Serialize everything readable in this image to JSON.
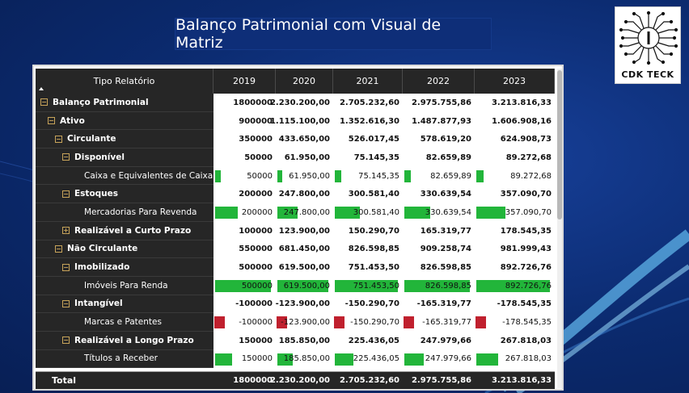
{
  "title": "Balanço Patrimonial com Visual de Matriz",
  "logo": {
    "text": "CDK TECK"
  },
  "matrix": {
    "header_label": "Tipo Relatório",
    "years": [
      "2019",
      "2020",
      "2021",
      "2022",
      "2023"
    ],
    "rows": [
      {
        "label": "Balanço Patrimonial",
        "level": 0,
        "expander": "minus",
        "bold": true,
        "bar": false,
        "values": [
          "1800000",
          "2.230.200,00",
          "2.705.232,60",
          "2.975.755,86",
          "3.213.816,33"
        ],
        "nums": [
          1800000,
          2230200,
          2705232.6,
          2975755.86,
          3213816.33
        ]
      },
      {
        "label": "Ativo",
        "level": 1,
        "expander": "minus",
        "bold": true,
        "bar": false,
        "values": [
          "900000",
          "1.115.100,00",
          "1.352.616,30",
          "1.487.877,93",
          "1.606.908,16"
        ],
        "nums": [
          900000,
          1115100,
          1352616.3,
          1487877.93,
          1606908.16
        ]
      },
      {
        "label": "Circulante",
        "level": 2,
        "expander": "minus",
        "bold": true,
        "bar": false,
        "values": [
          "350000",
          "433.650,00",
          "526.017,45",
          "578.619,20",
          "624.908,73"
        ],
        "nums": [
          350000,
          433650,
          526017.45,
          578619.2,
          624908.73
        ]
      },
      {
        "label": "Disponível",
        "level": 3,
        "expander": "minus",
        "bold": true,
        "bar": false,
        "values": [
          "50000",
          "61.950,00",
          "75.145,35",
          "82.659,89",
          "89.272,68"
        ],
        "nums": [
          50000,
          61950,
          75145.35,
          82659.89,
          89272.68
        ]
      },
      {
        "label": "Caixa e Equivalentes de Caixa",
        "level": 4,
        "expander": "none",
        "bold": false,
        "bar": true,
        "values": [
          "50000",
          "61.950,00",
          "75.145,35",
          "82.659,89",
          "89.272,68"
        ],
        "nums": [
          50000,
          61950,
          75145.35,
          82659.89,
          89272.68
        ]
      },
      {
        "label": "Estoques",
        "level": 3,
        "expander": "minus",
        "bold": true,
        "bar": false,
        "values": [
          "200000",
          "247.800,00",
          "300.581,40",
          "330.639,54",
          "357.090,70"
        ],
        "nums": [
          200000,
          247800,
          300581.4,
          330639.54,
          357090.7
        ]
      },
      {
        "label": "Mercadorias Para Revenda",
        "level": 4,
        "expander": "none",
        "bold": false,
        "bar": true,
        "values": [
          "200000",
          "247.800,00",
          "300.581,40",
          "330.639,54",
          "357.090,70"
        ],
        "nums": [
          200000,
          247800,
          300581.4,
          330639.54,
          357090.7
        ]
      },
      {
        "label": "Realizável a Curto Prazo",
        "level": 3,
        "expander": "plus",
        "bold": true,
        "bar": false,
        "values": [
          "100000",
          "123.900,00",
          "150.290,70",
          "165.319,77",
          "178.545,35"
        ],
        "nums": [
          100000,
          123900,
          150290.7,
          165319.77,
          178545.35
        ]
      },
      {
        "label": "Não Circulante",
        "level": 2,
        "expander": "minus",
        "bold": true,
        "bar": false,
        "values": [
          "550000",
          "681.450,00",
          "826.598,85",
          "909.258,74",
          "981.999,43"
        ],
        "nums": [
          550000,
          681450,
          826598.85,
          909258.74,
          981999.43
        ]
      },
      {
        "label": "Imobilizado",
        "level": 3,
        "expander": "minus",
        "bold": true,
        "bar": false,
        "values": [
          "500000",
          "619.500,00",
          "751.453,50",
          "826.598,85",
          "892.726,76"
        ],
        "nums": [
          500000,
          619500,
          751453.5,
          826598.85,
          892726.76
        ]
      },
      {
        "label": "Imóveis Para Renda",
        "level": 4,
        "expander": "none",
        "bold": false,
        "bar": true,
        "values": [
          "500000",
          "619.500,00",
          "751.453,50",
          "826.598,85",
          "892.726,76"
        ],
        "nums": [
          500000,
          619500,
          751453.5,
          826598.85,
          892726.76
        ]
      },
      {
        "label": "Intangível",
        "level": 3,
        "expander": "minus",
        "bold": true,
        "bar": false,
        "values": [
          "-100000",
          "-123.900,00",
          "-150.290,70",
          "-165.319,77",
          "-178.545,35"
        ],
        "nums": [
          -100000,
          -123900,
          -150290.7,
          -165319.77,
          -178545.35
        ]
      },
      {
        "label": "Marcas e Patentes",
        "level": 4,
        "expander": "none",
        "bold": false,
        "bar": true,
        "values": [
          "-100000",
          "-123.900,00",
          "-150.290,70",
          "-165.319,77",
          "-178.545,35"
        ],
        "nums": [
          -100000,
          -123900,
          -150290.7,
          -165319.77,
          -178545.35
        ]
      },
      {
        "label": "Realizável a Longo Prazo",
        "level": 3,
        "expander": "minus",
        "bold": true,
        "bar": false,
        "values": [
          "150000",
          "185.850,00",
          "225.436,05",
          "247.979,66",
          "267.818,03"
        ],
        "nums": [
          150000,
          185850,
          225436.05,
          247979.66,
          267818.03
        ]
      },
      {
        "label": "Títulos a Receber",
        "level": 4,
        "expander": "none",
        "bold": false,
        "bar": true,
        "values": [
          "150000",
          "185.850,00",
          "225.436,05",
          "247.979,66",
          "267.818,03"
        ],
        "nums": [
          150000,
          185850,
          225436.05,
          247979.66,
          267818.03
        ]
      }
    ],
    "total": {
      "label": "Total",
      "values": [
        "1800000",
        "2.230.200,00",
        "2.705.232,60",
        "2.975.755,86",
        "3.213.816,33"
      ]
    },
    "colors": {
      "positive_bar": "#22b53a",
      "negative_bar": "#c0202e",
      "header_bg": "#262626"
    }
  }
}
